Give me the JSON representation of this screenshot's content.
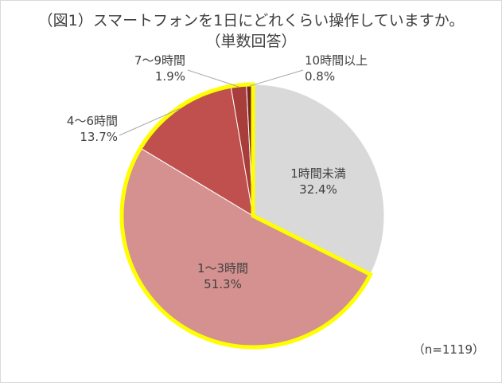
{
  "chart_data": {
    "type": "pie",
    "title": "（図1）スマートフォンを1日にどれくらい操作していますか。",
    "subtitle": "（単数回答）",
    "slices": [
      {
        "name": "1時間未満",
        "value": 32.4,
        "value_label": "32.4%",
        "color": "#d9d9d9"
      },
      {
        "name": "1～3時間",
        "value": 51.3,
        "value_label": "51.3%",
        "color": "#d4918f"
      },
      {
        "name": "4～6時間",
        "value": 13.7,
        "value_label": "13.7%",
        "color": "#c0504d"
      },
      {
        "name": "7～9時間",
        "value": 1.9,
        "value_label": "1.9%",
        "color": "#a83e3b"
      },
      {
        "name": "10時間以上",
        "value": 0.8,
        "value_label": "0.8%",
        "color": "#7b2622"
      }
    ],
    "highlight_color": "#ffff00",
    "start_angle_deg": 0,
    "direction": "clockwise",
    "legend": "none",
    "note": "（n=1119）"
  }
}
